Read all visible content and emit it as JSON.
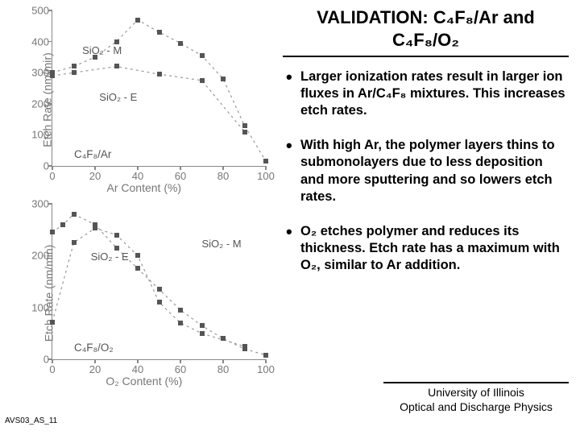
{
  "title_line1": "VALIDATION: C₄F₈/Ar and",
  "title_line2": "C₄F₈/O₂",
  "bullets": [
    "Larger ionization rates result in larger ion fluxes in Ar/C₄F₈ mixtures. This increases etch rates.",
    "With high Ar, the polymer layers thins to submonolayers due to less deposition and more sputtering and so lowers etch rates.",
    "O₂ etches polymer and reduces its thickness. Etch rate has a maximum with O₂, similar to Ar addition."
  ],
  "footer_right_l1": "University of Illinois",
  "footer_right_l2": "Optical and Discharge Physics",
  "footer_left": "AVS03_AS_11",
  "chart1": {
    "type": "scatter-line",
    "ylabel": "Etch Rate (nm/mir)",
    "xlabel": "Ar Content (%)",
    "chem_label": "C₄F₈/Ar",
    "xlim": [
      0,
      100
    ],
    "ylim": [
      0,
      500
    ],
    "xticks": [
      0,
      20,
      40,
      60,
      80,
      100
    ],
    "yticks": [
      0,
      100,
      200,
      300,
      400,
      500
    ],
    "axis_color": "#888888",
    "text_color": "#777777",
    "marker_color": "#555555",
    "line_color": "#999999",
    "line_dash": "3 4",
    "series": [
      {
        "label": "SiO₂ - M",
        "label_pos": [
          14,
          78
        ],
        "data": [
          [
            0,
            300
          ],
          [
            10,
            320
          ],
          [
            20,
            350
          ],
          [
            30,
            400
          ],
          [
            40,
            470
          ],
          [
            50,
            430
          ],
          [
            60,
            395
          ],
          [
            70,
            355
          ],
          [
            80,
            280
          ],
          [
            90,
            130
          ],
          [
            100,
            15
          ]
        ]
      },
      {
        "label": "SiO₂ - E",
        "label_pos": [
          22,
          48
        ],
        "data": [
          [
            0,
            290
          ],
          [
            10,
            300
          ],
          [
            30,
            320
          ],
          [
            50,
            295
          ],
          [
            70,
            275
          ],
          [
            90,
            110
          ]
        ]
      }
    ]
  },
  "chart2": {
    "type": "scatter-line",
    "ylabel": "Etch Rate (nm/min)",
    "xlabel": "O₂ Content (%)",
    "chem_label": "C₄F₈/O₂",
    "xlim": [
      0,
      100
    ],
    "ylim": [
      0,
      300
    ],
    "xticks": [
      0,
      20,
      40,
      60,
      80,
      100
    ],
    "yticks": [
      0,
      100,
      200,
      300
    ],
    "axis_color": "#888888",
    "text_color": "#777777",
    "marker_color": "#555555",
    "line_color": "#999999",
    "line_dash": "3 4",
    "series": [
      {
        "label": "SiO₂ - M",
        "label_pos": [
          70,
          78
        ],
        "data": [
          [
            0,
            245
          ],
          [
            5,
            260
          ],
          [
            10,
            280
          ],
          [
            20,
            260
          ],
          [
            30,
            215
          ],
          [
            40,
            175
          ],
          [
            50,
            135
          ],
          [
            60,
            95
          ],
          [
            70,
            65
          ],
          [
            80,
            40
          ],
          [
            90,
            20
          ],
          [
            100,
            8
          ]
        ]
      },
      {
        "label": "SiO₂ - E",
        "label_pos": [
          18,
          70
        ],
        "data": [
          [
            0,
            72
          ],
          [
            10,
            225
          ],
          [
            20,
            253
          ],
          [
            30,
            240
          ],
          [
            40,
            200
          ],
          [
            50,
            110
          ],
          [
            60,
            70
          ],
          [
            70,
            50
          ],
          [
            90,
            25
          ]
        ]
      }
    ]
  }
}
